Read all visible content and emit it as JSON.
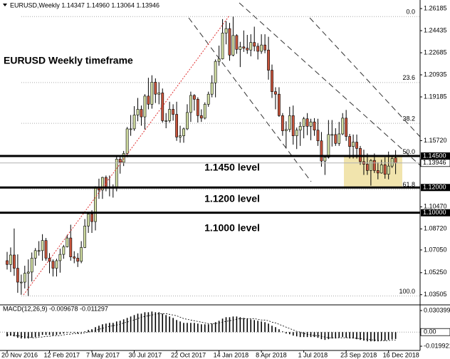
{
  "chart_data": {
    "type": "candlestick",
    "title": "EURUSD,Weekly  1.14347 1.14960 1.13064 1.13946",
    "annotation": "EURUSD Weekly timeframe",
    "up_color": "#d3e0a4",
    "down_color": "#c8553d",
    "zone_color": "#f1e4ad",
    "categories": [
      "20 Nov 2016",
      null,
      null,
      null,
      null,
      null,
      null,
      null,
      null,
      null,
      null,
      null,
      "12 Feb 2017",
      null,
      null,
      null,
      null,
      null,
      null,
      null,
      null,
      null,
      null,
      null,
      "7 May 2017",
      null,
      null,
      null,
      null,
      null,
      null,
      null,
      null,
      null,
      null,
      null,
      "30 Jul 2017",
      null,
      null,
      null,
      null,
      null,
      null,
      null,
      null,
      null,
      null,
      null,
      "22 Oct 2017",
      null,
      null,
      null,
      null,
      null,
      null,
      null,
      null,
      null,
      null,
      null,
      "14 Jan 2018",
      null,
      null,
      null,
      null,
      null,
      null,
      null,
      null,
      null,
      null,
      null,
      "8 Apr 2018",
      null,
      null,
      null,
      null,
      null,
      null,
      null,
      null,
      null,
      null,
      null,
      "1 Jul 2018",
      null,
      null,
      null,
      null,
      null,
      null,
      null,
      null,
      null,
      null,
      null,
      "23 Sep 2018",
      null,
      null,
      null,
      null,
      null,
      null,
      null,
      null,
      null,
      null,
      null,
      "16 Dec 2018",
      null,
      null
    ],
    "ohlc": [
      [
        1.062,
        1.069,
        1.055,
        1.059
      ],
      [
        1.059,
        1.0725,
        1.053,
        1.0665
      ],
      [
        1.0665,
        1.0875,
        1.05,
        1.056
      ],
      [
        1.056,
        1.067,
        1.0365,
        1.045
      ],
      [
        1.045,
        1.051,
        1.035,
        1.045
      ],
      [
        1.045,
        1.058,
        1.04,
        1.052
      ],
      [
        1.052,
        1.063,
        1.034,
        1.053
      ],
      [
        1.053,
        1.0685,
        1.0455,
        1.064
      ],
      [
        1.064,
        1.072,
        1.058,
        1.07
      ],
      [
        1.07,
        1.0775,
        1.066,
        1.07
      ],
      [
        1.07,
        1.083,
        1.062,
        1.078
      ],
      [
        1.078,
        1.08,
        1.062,
        1.064
      ],
      [
        1.064,
        1.068,
        1.052,
        1.0615
      ],
      [
        1.0615,
        1.063,
        1.0495,
        1.056
      ],
      [
        1.056,
        1.0635,
        1.0495,
        1.062
      ],
      [
        1.062,
        1.0715,
        1.0525,
        1.067
      ],
      [
        1.067,
        1.0745,
        1.0635,
        1.073
      ],
      [
        1.073,
        1.0825,
        1.0725,
        1.08
      ],
      [
        1.08,
        1.0905,
        1.062,
        1.065
      ],
      [
        1.065,
        1.0695,
        1.06,
        1.064
      ],
      [
        1.064,
        1.068,
        1.057,
        1.0615
      ],
      [
        1.0615,
        1.0775,
        1.06,
        1.0725
      ],
      [
        1.0725,
        1.095,
        1.072,
        1.0895
      ],
      [
        1.0895,
        1.0995,
        1.084,
        1.099
      ],
      [
        1.099,
        1.102,
        1.084,
        1.093
      ],
      [
        1.093,
        1.121,
        1.086,
        1.1205
      ],
      [
        1.1205,
        1.127,
        1.111,
        1.118
      ],
      [
        1.118,
        1.1285,
        1.111,
        1.128
      ],
      [
        1.128,
        1.1295,
        1.117,
        1.1195
      ],
      [
        1.1195,
        1.1295,
        1.113,
        1.12
      ],
      [
        1.12,
        1.1225,
        1.112,
        1.1195
      ],
      [
        1.1195,
        1.1445,
        1.117,
        1.1425
      ],
      [
        1.1425,
        1.1445,
        1.131,
        1.14
      ],
      [
        1.14,
        1.149,
        1.137,
        1.147
      ],
      [
        1.147,
        1.168,
        1.144,
        1.1665
      ],
      [
        1.1665,
        1.1775,
        1.161,
        1.1665
      ],
      [
        1.1665,
        1.1845,
        1.165,
        1.1775
      ],
      [
        1.1775,
        1.191,
        1.1725,
        1.182
      ],
      [
        1.182,
        1.185,
        1.169,
        1.176
      ],
      [
        1.176,
        1.194,
        1.166,
        1.1925
      ],
      [
        1.1925,
        1.207,
        1.182,
        1.186
      ],
      [
        1.186,
        1.209,
        1.1825,
        1.2035
      ],
      [
        1.2035,
        1.2065,
        1.187,
        1.194
      ],
      [
        1.194,
        1.2035,
        1.186,
        1.195
      ],
      [
        1.195,
        1.1985,
        1.1715,
        1.173
      ],
      [
        1.173,
        1.179,
        1.167,
        1.173
      ],
      [
        1.173,
        1.188,
        1.1715,
        1.182
      ],
      [
        1.182,
        1.186,
        1.173,
        1.178
      ],
      [
        1.178,
        1.188,
        1.157,
        1.16
      ],
      [
        1.16,
        1.169,
        1.1555,
        1.161
      ],
      [
        1.161,
        1.1675,
        1.1555,
        1.1665
      ],
      [
        1.1665,
        1.186,
        1.1655,
        1.1795
      ],
      [
        1.1795,
        1.196,
        1.172,
        1.193
      ],
      [
        1.193,
        1.194,
        1.181,
        1.19
      ],
      [
        1.19,
        1.1915,
        1.1715,
        1.177
      ],
      [
        1.177,
        1.182,
        1.172,
        1.175
      ],
      [
        1.175,
        1.1875,
        1.174,
        1.186
      ],
      [
        1.186,
        1.196,
        1.184,
        1.194
      ],
      [
        1.194,
        1.209,
        1.1915,
        1.203
      ],
      [
        1.203,
        1.2215,
        1.1915,
        1.22
      ],
      [
        1.22,
        1.2325,
        1.2165,
        1.222
      ],
      [
        1.222,
        1.2535,
        1.2215,
        1.2425
      ],
      [
        1.2425,
        1.252,
        1.2335,
        1.246
      ],
      [
        1.246,
        1.2505,
        1.2205,
        1.225
      ],
      [
        1.225,
        1.2555,
        1.224,
        1.2405
      ],
      [
        1.2405,
        1.2415,
        1.226,
        1.2295
      ],
      [
        1.2295,
        1.2355,
        1.2155,
        1.2315
      ],
      [
        1.2315,
        1.2445,
        1.2275,
        1.2305
      ],
      [
        1.2305,
        1.241,
        1.226,
        1.229
      ],
      [
        1.229,
        1.2415,
        1.224,
        1.235
      ],
      [
        1.235,
        1.2475,
        1.228,
        1.232
      ],
      [
        1.232,
        1.2345,
        1.2215,
        1.228
      ],
      [
        1.228,
        1.2415,
        1.226,
        1.233
      ],
      [
        1.233,
        1.2415,
        1.2265,
        1.229
      ],
      [
        1.229,
        1.2395,
        1.2055,
        1.213
      ],
      [
        1.213,
        1.2175,
        1.191,
        1.196
      ],
      [
        1.196,
        1.1995,
        1.182,
        1.194
      ],
      [
        1.194,
        1.1995,
        1.176,
        1.177
      ],
      [
        1.177,
        1.179,
        1.161,
        1.165
      ],
      [
        1.165,
        1.1725,
        1.151,
        1.166
      ],
      [
        1.166,
        1.184,
        1.164,
        1.177
      ],
      [
        1.177,
        1.185,
        1.154,
        1.161
      ],
      [
        1.161,
        1.1675,
        1.1505,
        1.1655
      ],
      [
        1.1655,
        1.172,
        1.153,
        1.1685
      ],
      [
        1.1685,
        1.176,
        1.159,
        1.1745
      ],
      [
        1.1745,
        1.179,
        1.1615,
        1.1685
      ],
      [
        1.1685,
        1.1745,
        1.1575,
        1.172
      ],
      [
        1.172,
        1.175,
        1.161,
        1.1655
      ],
      [
        1.1655,
        1.1745,
        1.153,
        1.157
      ],
      [
        1.157,
        1.164,
        1.1365,
        1.141
      ],
      [
        1.141,
        1.1445,
        1.13,
        1.144
      ],
      [
        1.144,
        1.1735,
        1.143,
        1.162
      ],
      [
        1.162,
        1.1735,
        1.1525,
        1.162
      ],
      [
        1.162,
        1.167,
        1.153,
        1.155
      ],
      [
        1.155,
        1.172,
        1.153,
        1.1625
      ],
      [
        1.1625,
        1.179,
        1.1615,
        1.175
      ],
      [
        1.175,
        1.1815,
        1.157,
        1.1605
      ],
      [
        1.1605,
        1.1625,
        1.143,
        1.1525
      ],
      [
        1.1525,
        1.162,
        1.143,
        1.156
      ],
      [
        1.156,
        1.162,
        1.143,
        1.151
      ],
      [
        1.151,
        1.153,
        1.138,
        1.1405
      ],
      [
        1.1405,
        1.15,
        1.13,
        1.1385
      ],
      [
        1.1385,
        1.147,
        1.13,
        1.1335
      ],
      [
        1.1335,
        1.1425,
        1.1215,
        1.1415
      ],
      [
        1.1415,
        1.147,
        1.1315,
        1.1335
      ],
      [
        1.1335,
        1.14,
        1.1265,
        1.1315
      ],
      [
        1.1315,
        1.142,
        1.131,
        1.138
      ],
      [
        1.138,
        1.144,
        1.127,
        1.1305
      ],
      [
        1.1305,
        1.1485,
        1.1265,
        1.137
      ],
      [
        1.137,
        1.1445,
        1.1355,
        1.143
      ],
      [
        1.14347,
        1.1496,
        1.13064,
        1.13946
      ]
    ],
    "ylim": [
      1.0281,
      1.2664
    ],
    "yticks": [
      1.26185,
      1.24435,
      1.22685,
      1.20935,
      1.19185,
      {
        "value": 1.1572,
        "label": "1.15720"
      },
      {
        "value": 1.1047,
        "label": "1.10470"
      },
      {
        "value": 1.0872,
        "label": "1.08720"
      },
      {
        "value": 1.0705,
        "label": "1.07050"
      },
      {
        "value": 1.0525,
        "label": "1.05250"
      },
      1.03505
    ],
    "levels": [
      {
        "value": 1.145,
        "label": "1.14500",
        "text": "1.1450 level"
      },
      {
        "value": 1.12,
        "label": "1.12000",
        "text": "1.1200 level"
      },
      {
        "value": 1.1,
        "label": "1.10000",
        "text": "1.1000 level"
      }
    ],
    "fib": {
      "high": 1.2555,
      "low": 1.034,
      "levels": [
        {
          "value": 0,
          "label": "0.0"
        },
        23.6,
        38.2,
        {
          "value": 50,
          "label": "50.0"
        },
        61.8,
        {
          "value": 100,
          "label": "100.0"
        }
      ]
    },
    "macd": {
      "label": "MACD(12,26,9) -0.009678 -0.011297",
      "values": [
        -0.006,
        -0.005,
        -0.006,
        -0.008,
        -0.009,
        -0.009,
        -0.009,
        -0.008,
        -0.007,
        -0.006,
        -0.004,
        -0.004,
        -0.004,
        -0.005,
        -0.004,
        -0.003,
        -0.002,
        -0.001,
        -0.001,
        -0.001,
        -0.002,
        -0.001,
        0.001,
        0.003,
        0.004,
        0.007,
        0.009,
        0.011,
        0.012,
        0.013,
        0.013,
        0.015,
        0.016,
        0.018,
        0.02,
        0.022,
        0.024,
        0.026,
        0.026,
        0.028,
        0.028,
        0.029,
        0.028,
        0.028,
        0.026,
        0.024,
        0.022,
        0.02,
        0.017,
        0.015,
        0.013,
        0.013,
        0.013,
        0.013,
        0.012,
        0.011,
        0.011,
        0.011,
        0.012,
        0.014,
        0.016,
        0.019,
        0.021,
        0.021,
        0.022,
        0.022,
        0.021,
        0.02,
        0.019,
        0.018,
        0.017,
        0.016,
        0.015,
        0.014,
        0.012,
        0.009,
        0.007,
        0.004,
        0.001,
        -0.002,
        -0.003,
        -0.005,
        -0.006,
        -0.007,
        -0.007,
        -0.007,
        -0.007,
        -0.007,
        -0.008,
        -0.01,
        -0.011,
        -0.01,
        -0.009,
        -0.009,
        -0.008,
        -0.007,
        -0.008,
        -0.009,
        -0.009,
        -0.01,
        -0.011,
        -0.012,
        -0.013,
        -0.013,
        -0.013,
        -0.013,
        -0.012,
        -0.012,
        -0.011,
        -0.01,
        -0.009678
      ],
      "signal": [
        -0.004,
        -0.004,
        -0.005,
        -0.005,
        -0.006,
        -0.007,
        -0.007,
        -0.008,
        -0.008,
        -0.007,
        -0.007,
        -0.006,
        -0.006,
        -0.005,
        -0.005,
        -0.005,
        -0.004,
        -0.003,
        -0.003,
        -0.002,
        -0.002,
        -0.002,
        -0.001,
        0.0,
        0.001,
        0.002,
        0.004,
        0.005,
        0.007,
        0.008,
        0.009,
        0.01,
        0.011,
        0.013,
        0.014,
        0.016,
        0.017,
        0.019,
        0.021,
        0.022,
        0.023,
        0.024,
        0.025,
        0.026,
        0.026,
        0.026,
        0.025,
        0.024,
        0.023,
        0.021,
        0.019,
        0.018,
        0.017,
        0.016,
        0.015,
        0.014,
        0.013,
        0.012,
        0.012,
        0.012,
        0.013,
        0.014,
        0.015,
        0.016,
        0.017,
        0.018,
        0.019,
        0.019,
        0.019,
        0.019,
        0.019,
        0.018,
        0.017,
        0.017,
        0.016,
        0.014,
        0.013,
        0.011,
        0.009,
        0.007,
        0.005,
        0.003,
        0.001,
        0.0,
        -0.002,
        -0.003,
        -0.004,
        -0.005,
        -0.005,
        -0.006,
        -0.007,
        -0.008,
        -0.008,
        -0.008,
        -0.008,
        -0.008,
        -0.008,
        -0.008,
        -0.008,
        -0.009,
        -0.009,
        -0.01,
        -0.01,
        -0.011,
        -0.011,
        -0.012,
        -0.012,
        -0.012,
        -0.012,
        -0.011,
        -0.011297
      ],
      "ylim": [
        -0.0259,
        0.0364
      ],
      "yticks": [
        0.030399,
        {
          "value": 0,
          "label": "0.00"
        },
        -0.019921
      ]
    }
  }
}
